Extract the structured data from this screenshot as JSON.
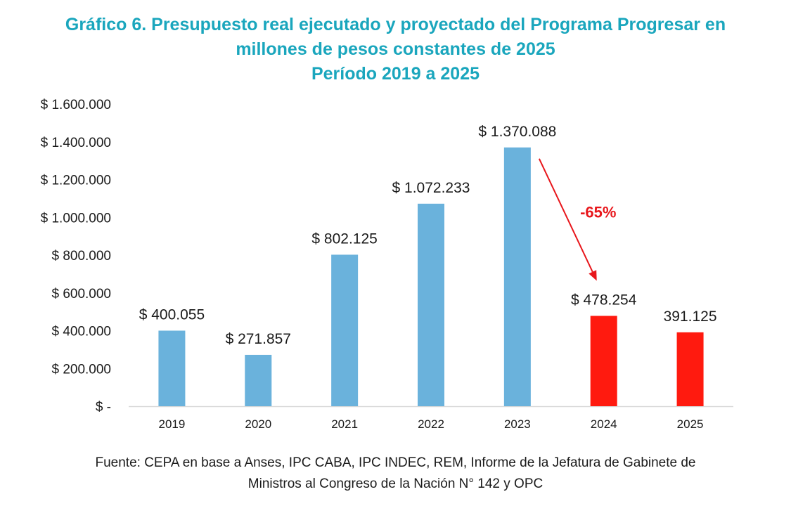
{
  "chart_data": {
    "type": "bar",
    "title": "Gráfico 6. Presupuesto real ejecutado y proyectado del Programa Progresar en millones de pesos constantes de 2025",
    "title_lines": [
      "Gráfico 6. Presupuesto real ejecutado y proyectado del Programa Progresar en",
      "millones de pesos constantes de 2025",
      "Período 2019 a 2025"
    ],
    "subtitle": "Período 2019 a 2025",
    "xlabel": "",
    "ylabel": "",
    "categories": [
      "2019",
      "2020",
      "2021",
      "2022",
      "2023",
      "2024",
      "2025"
    ],
    "values": [
      400055,
      271857,
      802125,
      1072233,
      1370088,
      478254,
      391125
    ],
    "data_labels": [
      "$ 400.055",
      "$ 271.857",
      "$ 802.125",
      "$ 1.072.233",
      "$ 1.370.088",
      "$ 478.254",
      "391.125"
    ],
    "bar_colors": [
      "#6ab2dc",
      "#6ab2dc",
      "#6ab2dc",
      "#6ab2dc",
      "#6ab2dc",
      "#ff1a0f",
      "#ff1a0f"
    ],
    "ylim": [
      0,
      1600000
    ],
    "yticks": [
      0,
      200000,
      400000,
      600000,
      800000,
      1000000,
      1200000,
      1400000,
      1600000
    ],
    "ytick_labels": [
      "$ -",
      "$ 200.000",
      "$ 400.000",
      "$ 600.000",
      "$ 800.000",
      "$ 1.000.000",
      "$ 1.200.000",
      "$ 1.400.000",
      "$ 1.600.000"
    ],
    "grid": false,
    "legend": "none",
    "annotations": [
      {
        "text": "-65%",
        "type": "arrow",
        "from_category": "2023",
        "to_category": "2024",
        "color": "#e8161b"
      }
    ],
    "source": "Fuente: CEPA en base a Anses, IPC CABA, IPC INDEC, REM, Informe de la Jefatura de Gabinete de Ministros al Congreso de la Nación N° 142 y OPC",
    "source_lines": [
      "Fuente: CEPA en base a Anses, IPC CABA, IPC INDEC, REM, Informe de la Jefatura de Gabinete de",
      "Ministros al Congreso de la Nación N° 142 y OPC"
    ]
  },
  "colors": {
    "title": "#1aa6bd",
    "annotation": "#e8161b"
  }
}
